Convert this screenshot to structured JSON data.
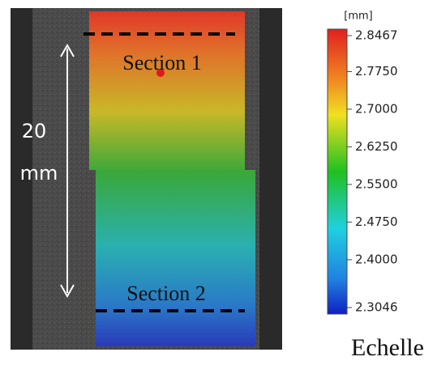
{
  "image": {
    "section_top": "Section 1",
    "section_bottom": "Section 2",
    "length_value": "20",
    "length_unit": "mm"
  },
  "colorbar": {
    "unit": "[mm]",
    "ticks": [
      {
        "value": 2.8467,
        "label": "2.8467"
      },
      {
        "value": 2.775,
        "label": "2.7750"
      },
      {
        "value": 2.7,
        "label": "2.7000"
      },
      {
        "value": 2.625,
        "label": "2.6250"
      },
      {
        "value": 2.55,
        "label": "2.5500"
      },
      {
        "value": 2.475,
        "label": "2.4750"
      },
      {
        "value": 2.4,
        "label": "2.4000"
      },
      {
        "value": 2.3046,
        "label": "2.3046"
      }
    ],
    "title": "Echelle"
  }
}
